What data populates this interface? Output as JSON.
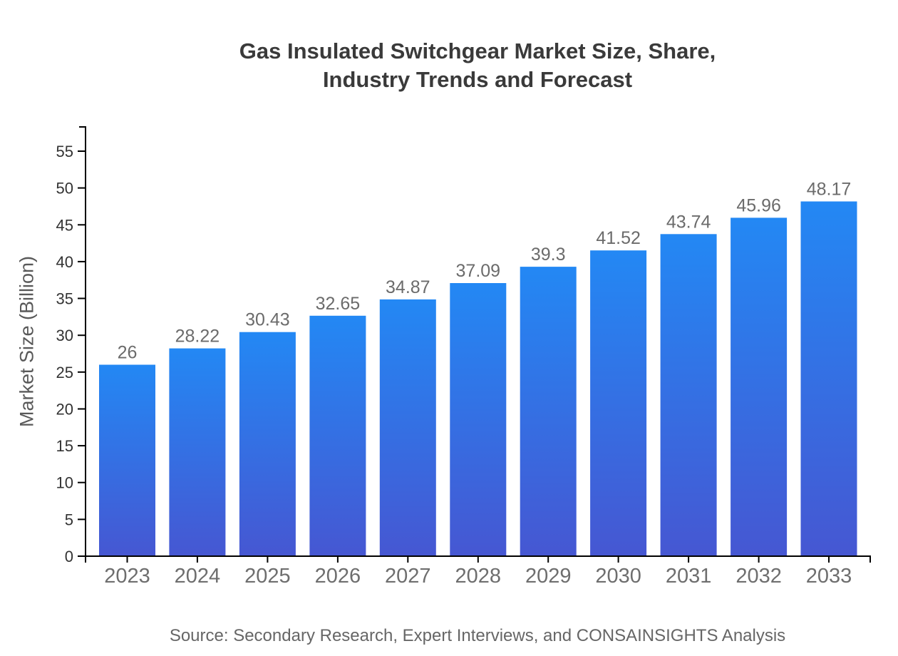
{
  "page": {
    "background": "#ffffff"
  },
  "header": {
    "title_lines": [
      "Gas Insulated Switchgear Market Size, Share,",
      "Industry Trends and Forecast"
    ]
  },
  "footer": {
    "source": "Source: Secondary Research, Expert Interviews, and CONSAINSIGHTS Analysis"
  },
  "chart_data": {
    "type": "bar",
    "title": "Gas Insulated Switchgear Market Size, Share, Industry Trends and Forecast",
    "categories": [
      "2023",
      "2024",
      "2025",
      "2026",
      "2027",
      "2028",
      "2029",
      "2030",
      "2031",
      "2032",
      "2033"
    ],
    "values": [
      26,
      28.22,
      30.43,
      32.65,
      34.87,
      37.09,
      39.3,
      41.52,
      43.74,
      45.96,
      48.17
    ],
    "xlabel": "",
    "ylabel": "Market Size (Billion)",
    "ylim": [
      0,
      55
    ],
    "y_ticks": [
      0,
      5,
      10,
      15,
      20,
      25,
      30,
      35,
      40,
      45,
      50,
      55
    ],
    "grid": false,
    "legend": "none",
    "value_labels_shown": true,
    "colors": {
      "bar_gradient_top": "#2388F4",
      "bar_gradient_bottom": "#4657D2",
      "axis_line": "#000000",
      "y_tick_text": "#333333",
      "x_tick_text": "#6e6e6e",
      "value_label_text": "#6b6b6b",
      "title_text": "#3a3a3a",
      "source_text": "#666666"
    }
  }
}
